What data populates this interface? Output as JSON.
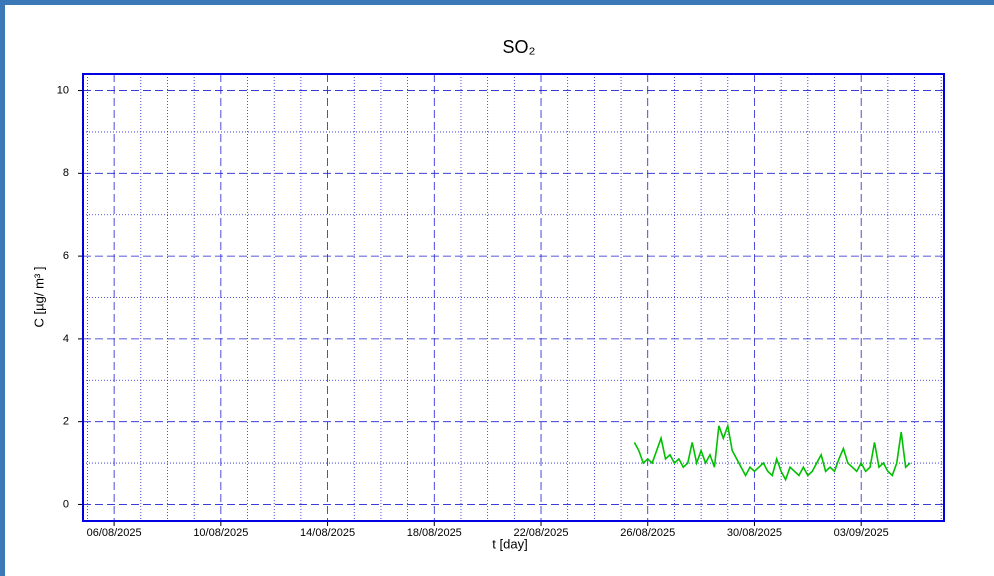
{
  "chart_data": {
    "type": "line",
    "title": "SO₂",
    "xlabel": "t [day]",
    "ylabel": "C [µg/ m³ ]",
    "xlim": [
      "2025-08-04T20:00Z",
      "2025-09-06T02:30Z"
    ],
    "xticks": [
      {
        "value": "2025-08-06T00:00Z",
        "label": "06/08/2025"
      },
      {
        "value": "2025-08-10T00:00Z",
        "label": "10/08/2025"
      },
      {
        "value": "2025-08-14T00:00Z",
        "label": "14/08/2025"
      },
      {
        "value": "2025-08-18T00:00Z",
        "label": "18/08/2025"
      },
      {
        "value": "2025-08-22T00:00Z",
        "label": "22/08/2025"
      },
      {
        "value": "2025-08-26T00:00Z",
        "label": "26/08/2025"
      },
      {
        "value": "2025-08-30T00:00Z",
        "label": "30/08/2025"
      },
      {
        "value": "2025-09-03T00:00Z",
        "label": "03/09/2025"
      }
    ],
    "xminorticks": [
      "2025-08-05T00:00Z",
      "2025-08-07T00:00Z",
      "2025-08-08T00:00Z",
      "2025-08-09T00:00Z",
      "2025-08-11T00:00Z",
      "2025-08-12T00:00Z",
      "2025-08-13T00:00Z",
      "2025-08-15T00:00Z",
      "2025-08-16T00:00Z",
      "2025-08-17T00:00Z",
      "2025-08-19T00:00Z",
      "2025-08-20T00:00Z",
      "2025-08-21T00:00Z",
      "2025-08-23T00:00Z",
      "2025-08-24T00:00Z",
      "2025-08-25T00:00Z",
      "2025-08-27T00:00Z",
      "2025-08-28T00:00Z",
      "2025-08-29T00:00Z",
      "2025-08-31T00:00Z",
      "2025-09-01T00:00Z",
      "2025-09-02T00:00Z",
      "2025-09-04T00:00Z",
      "2025-09-05T00:00Z",
      "2025-09-06T00:00Z"
    ],
    "ylim": [
      -0.4,
      10.4
    ],
    "yticks": [
      0,
      2,
      4,
      6,
      8,
      10
    ],
    "yminorticks": [
      1,
      3,
      5,
      7,
      9
    ],
    "grid": true,
    "series": [
      {
        "color": "#00c000",
        "x": [
          "2025-08-25T12:00Z",
          "2025-08-25T16:00Z",
          "2025-08-25T20:00Z",
          "2025-08-26T00:00Z",
          "2025-08-26T04:00Z",
          "2025-08-26T08:00Z",
          "2025-08-26T12:00Z",
          "2025-08-26T16:00Z",
          "2025-08-26T20:00Z",
          "2025-08-27T00:00Z",
          "2025-08-27T04:00Z",
          "2025-08-27T08:00Z",
          "2025-08-27T12:00Z",
          "2025-08-27T16:00Z",
          "2025-08-27T20:00Z",
          "2025-08-28T00:00Z",
          "2025-08-28T04:00Z",
          "2025-08-28T08:00Z",
          "2025-08-28T12:00Z",
          "2025-08-28T16:00Z",
          "2025-08-28T20:00Z",
          "2025-08-29T00:00Z",
          "2025-08-29T04:00Z",
          "2025-08-29T08:00Z",
          "2025-08-29T12:00Z",
          "2025-08-29T16:00Z",
          "2025-08-29T20:00Z",
          "2025-08-30T00:00Z",
          "2025-08-30T04:00Z",
          "2025-08-30T08:00Z",
          "2025-08-30T12:00Z",
          "2025-08-30T16:00Z",
          "2025-08-30T20:00Z",
          "2025-08-31T00:00Z",
          "2025-08-31T04:00Z",
          "2025-08-31T08:00Z",
          "2025-08-31T12:00Z",
          "2025-08-31T16:00Z",
          "2025-08-31T20:00Z",
          "2025-09-01T00:00Z",
          "2025-09-01T04:00Z",
          "2025-09-01T08:00Z",
          "2025-09-01T12:00Z",
          "2025-09-01T16:00Z",
          "2025-09-01T20:00Z",
          "2025-09-02T00:00Z",
          "2025-09-02T04:00Z",
          "2025-09-02T08:00Z",
          "2025-09-02T12:00Z",
          "2025-09-02T16:00Z",
          "2025-09-02T20:00Z",
          "2025-09-03T00:00Z",
          "2025-09-03T04:00Z",
          "2025-09-03T08:00Z",
          "2025-09-03T12:00Z",
          "2025-09-03T16:00Z",
          "2025-09-03T20:00Z",
          "2025-09-04T00:00Z",
          "2025-09-04T04:00Z",
          "2025-09-04T08:00Z",
          "2025-09-04T12:00Z",
          "2025-09-04T16:00Z",
          "2025-09-04T20:00Z"
        ],
        "values": [
          1.5,
          1.3,
          1.0,
          1.1,
          1.0,
          1.3,
          1.6,
          1.1,
          1.2,
          1.0,
          1.1,
          0.9,
          1.0,
          1.5,
          1.0,
          1.3,
          1.0,
          1.2,
          0.9,
          1.9,
          1.6,
          1.9,
          1.3,
          1.1,
          0.9,
          0.7,
          0.9,
          0.8,
          0.9,
          1.0,
          0.8,
          0.7,
          1.1,
          0.8,
          0.6,
          0.9,
          0.8,
          0.7,
          0.9,
          0.7,
          0.8,
          1.0,
          1.2,
          0.8,
          0.9,
          0.8,
          1.1,
          1.35,
          1.0,
          0.9,
          0.8,
          1.0,
          0.8,
          0.9,
          1.5,
          0.9,
          1.0,
          0.8,
          0.7,
          1.0,
          1.75,
          0.9,
          1.0
        ]
      }
    ]
  }
}
